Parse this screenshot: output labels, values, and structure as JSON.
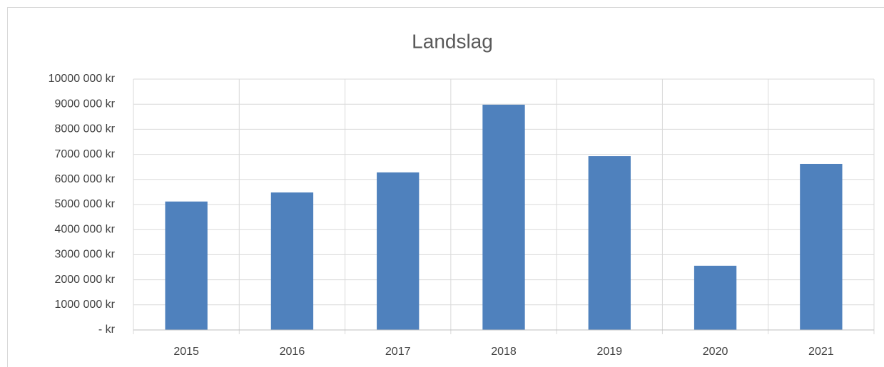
{
  "chart_data": {
    "type": "bar",
    "title": "Landslag",
    "categories": [
      "2015",
      "2016",
      "2017",
      "2018",
      "2019",
      "2020",
      "2021"
    ],
    "values": [
      5120000,
      5480000,
      6280000,
      8980000,
      6930000,
      2560000,
      6620000
    ],
    "color": "#4f81bd",
    "ylim": [
      0,
      10000000
    ],
    "yticks": [
      {
        "value": 0,
        "label": "-   kr"
      },
      {
        "value": 1000000,
        "label": "1000 000 kr"
      },
      {
        "value": 2000000,
        "label": "2000 000 kr"
      },
      {
        "value": 3000000,
        "label": "3000 000 kr"
      },
      {
        "value": 4000000,
        "label": "4000 000 kr"
      },
      {
        "value": 5000000,
        "label": "5000 000 kr"
      },
      {
        "value": 6000000,
        "label": "6000 000 kr"
      },
      {
        "value": 7000000,
        "label": "7000 000 kr"
      },
      {
        "value": 8000000,
        "label": "8000 000 kr"
      },
      {
        "value": 9000000,
        "label": "9000 000 kr"
      },
      {
        "value": 10000000,
        "label": "10000 000 kr"
      }
    ],
    "grid": true
  }
}
